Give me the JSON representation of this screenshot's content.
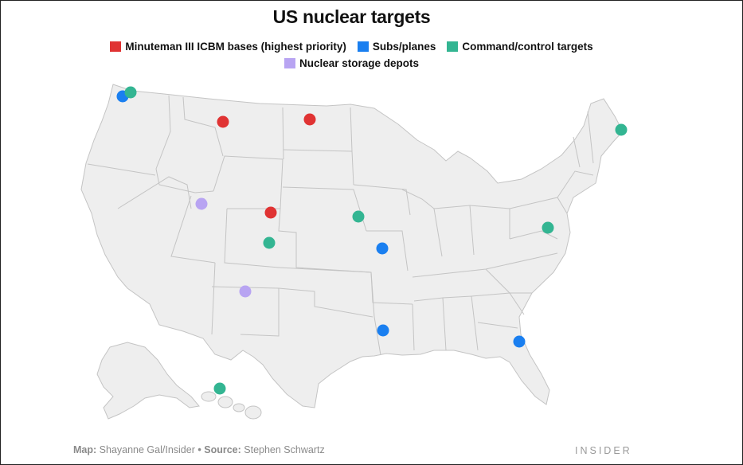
{
  "title": "US nuclear targets",
  "legend": [
    {
      "label": "Minuteman III ICBM bases (highest priority)",
      "color": "#e03333"
    },
    {
      "label": "Subs/planes",
      "color": "#1a7ff0"
    },
    {
      "label": "Command/control targets",
      "color": "#33b592"
    },
    {
      "label": "Nuclear storage depots",
      "color": "#b8a4f2"
    }
  ],
  "map_colors": {
    "land": "#eeeeee",
    "border": "#c4c4c4"
  },
  "footer": {
    "map_label": "Map:",
    "map_credit": "Shayanne Gal/Insider",
    "separator": "•",
    "source_label": "Source:",
    "source_credit": "Stephen Schwartz"
  },
  "brand": "INSIDER"
}
